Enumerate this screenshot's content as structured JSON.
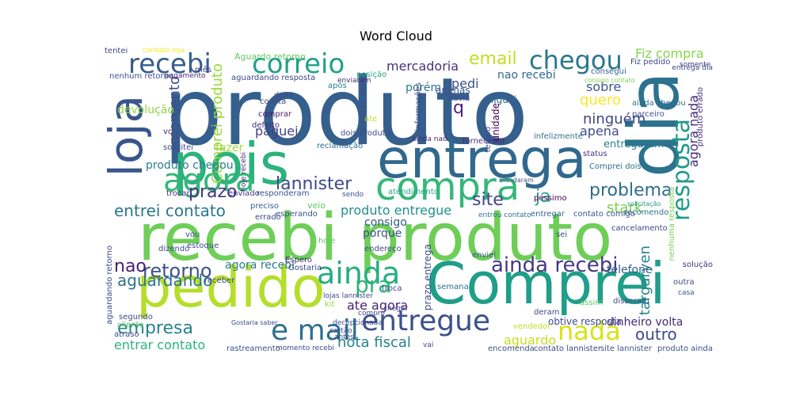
{
  "chart_data": {
    "type": "word_cloud",
    "title": "Word Cloud",
    "words": [
      {
        "text": "produto",
        "color": "#355f8d"
      },
      {
        "text": "recebi produto",
        "color": "#6ece58"
      },
      {
        "text": "pois",
        "color": "#2db27d"
      },
      {
        "text": "entrega",
        "color": "#31688e"
      },
      {
        "text": "dia",
        "color": "#2c728e"
      },
      {
        "text": "Comprei",
        "color": "#1f9e89"
      },
      {
        "text": "pedido",
        "color": "#b5de2b"
      },
      {
        "text": "loja",
        "color": "#39568c"
      },
      {
        "text": "compra",
        "color": "#35b779"
      },
      {
        "text": "correio",
        "color": "#1fa188"
      },
      {
        "text": "recebi",
        "color": "#365c8d"
      },
      {
        "text": "chegou",
        "color": "#2a788e"
      },
      {
        "text": "agora",
        "color": "#35b779"
      },
      {
        "text": "ainda",
        "color": "#27ad81"
      },
      {
        "text": "e mail",
        "color": "#2d708e"
      },
      {
        "text": "entregue",
        "color": "#3b528b"
      },
      {
        "text": "nada",
        "color": "#d8e219"
      },
      {
        "text": "ainda recebi",
        "color": "#443983"
      },
      {
        "text": "resposta",
        "color": "#1f9a8a"
      },
      {
        "text": "lannister",
        "color": "#3e4989"
      },
      {
        "text": "problema",
        "color": "#2e6d8e"
      },
      {
        "text": "site",
        "color": "#3f4788"
      },
      {
        "text": "prazo",
        "color": "#463480"
      },
      {
        "text": "entrei contato",
        "color": "#2a768e"
      },
      {
        "text": "ja",
        "color": "#20a386"
      },
      {
        "text": "email",
        "color": "#c2df23"
      },
      {
        "text": "retorno",
        "color": "#3b528b"
      },
      {
        "text": "nao",
        "color": "#482173"
      },
      {
        "text": "pra",
        "color": "#31b57b"
      },
      {
        "text": "aguardando",
        "color": "#2c738e"
      },
      {
        "text": "empresa",
        "color": "#25848e"
      },
      {
        "text": "entrar contato",
        "color": "#2db27d"
      },
      {
        "text": "mercadoria",
        "color": "#46337e"
      },
      {
        "text": "Fiz compra",
        "color": "#86d549"
      },
      {
        "text": "nao recebi",
        "color": "#30698e"
      },
      {
        "text": "quero",
        "color": "#fde725"
      },
      {
        "text": "ninguém",
        "color": "#414487"
      },
      {
        "text": "sobre",
        "color": "#38598c"
      },
      {
        "text": "apena",
        "color": "#3d4d8a"
      },
      {
        "text": "entregaram",
        "color": "#287c8e"
      },
      {
        "text": "momento",
        "color": "#3d4e8a"
      },
      {
        "text": "Comprei produto",
        "color": "#9bd93c"
      },
      {
        "text": "paguei",
        "color": "#433e85"
      },
      {
        "text": "produto chegou",
        "color": "#277f8e"
      },
      {
        "text": "produto entregue",
        "color": "#21918c"
      },
      {
        "text": "porque",
        "color": "#3a548c"
      },
      {
        "text": "consigo",
        "color": "#375a8c"
      },
      {
        "text": "agora recebi",
        "color": "#287d8e"
      },
      {
        "text": "ate agora",
        "color": "#482475"
      },
      {
        "text": "nota fiscal",
        "color": "#25838e"
      },
      {
        "text": "aguardo",
        "color": "#c8e020"
      },
      {
        "text": "outro",
        "color": "#3e4a89"
      },
      {
        "text": "targaryen",
        "color": "#26828e"
      },
      {
        "text": "stark",
        "color": "#7ad151"
      },
      {
        "text": "agora nada",
        "color": "#472f7d"
      },
      {
        "text": "dinheiro volta",
        "color": "#482878"
      },
      {
        "text": "telefone",
        "color": "#34618d"
      },
      {
        "text": "devolução",
        "color": "#90d743"
      },
      {
        "text": "fazer",
        "color": "#a2da37"
      },
      {
        "text": "q",
        "color": "#482475"
      },
      {
        "text": "porém",
        "color": "#2a788e"
      },
      {
        "text": "pedi",
        "color": "#3b528b"
      },
      {
        "text": "Aguardo retorno",
        "color": "#5ec962"
      },
      {
        "text": "contato loja",
        "color": "#fde725"
      },
      {
        "text": "tentei",
        "color": "#414487"
      },
      {
        "text": "nenhum retorno",
        "color": "#3b528b"
      },
      {
        "text": "pagamento",
        "color": "#482878"
      },
      {
        "text": "aguardando resposta",
        "color": "#3e4a89"
      },
      {
        "text": "posição",
        "color": "#22a884"
      },
      {
        "text": "enviaram",
        "color": "#472c7a"
      },
      {
        "text": "após",
        "color": "#25848e"
      },
      {
        "text": "apenas",
        "color": "#3b528b"
      },
      {
        "text": "consegui",
        "color": "#355f8d"
      },
      {
        "text": "consigo contato",
        "color": "#7ad151"
      },
      {
        "text": "Fiz pedido",
        "color": "#3e4a89"
      },
      {
        "text": "somente",
        "color": "#463480"
      },
      {
        "text": "entrega dia",
        "color": "#3e4989"
      },
      {
        "text": "ainda chegou",
        "color": "#2c728e"
      },
      {
        "text": "parceiro",
        "color": "#3b528b"
      },
      {
        "text": "produto errado",
        "color": "#46327e"
      },
      {
        "text": "liguei",
        "color": "#31688e"
      },
      {
        "text": "havia",
        "color": "#3e4a89"
      },
      {
        "text": "unidade",
        "color": "#440154"
      },
      {
        "text": "informações",
        "color": "#3f4788"
      },
      {
        "text": "produto veio",
        "color": "#3e4a89"
      },
      {
        "text": "consta",
        "color": "#3e4a89"
      },
      {
        "text": "comprar",
        "color": "#481a6c"
      },
      {
        "text": "defeito",
        "color": "#472d7b"
      },
      {
        "text": "reclamação",
        "color": "#2e6d8e"
      },
      {
        "text": "dois produto",
        "color": "#3e4a89"
      },
      {
        "text": "ainda nao",
        "color": "#482878"
      },
      {
        "text": "fornecedor",
        "color": "#482878"
      },
      {
        "text": "infelizmente",
        "color": "#2c738e"
      },
      {
        "text": "status",
        "color": "#46337e"
      },
      {
        "text": "Comprei dois",
        "color": "#2e6e8e"
      },
      {
        "text": "mandaram",
        "color": "#3b528b"
      },
      {
        "text": "vc",
        "color": "#482878"
      },
      {
        "text": "solicitei",
        "color": "#3f4788"
      },
      {
        "text": "hoje recebi",
        "color": "#472c7a"
      },
      {
        "text": "trocar",
        "color": "#472f7d"
      },
      {
        "text": "enviado",
        "color": "#433e85"
      },
      {
        "text": "responderam",
        "color": "#3b528b"
      },
      {
        "text": "sendo",
        "color": "#3b528b"
      },
      {
        "text": "atendimento",
        "color": "#22a884"
      },
      {
        "text": "tempo",
        "color": "#3e4a89"
      },
      {
        "text": "péssimo",
        "color": "#440154"
      },
      {
        "text": "recomendo",
        "color": "#2c728e"
      },
      {
        "text": "solicitação",
        "color": "#1f9a8a"
      },
      {
        "text": "preciso",
        "color": "#355f8d"
      },
      {
        "text": "errado",
        "color": "#3e4a89"
      },
      {
        "text": "esperando",
        "color": "#3b528b"
      },
      {
        "text": "veio",
        "color": "#5ec962"
      },
      {
        "text": "entrou contato",
        "color": "#2c728e"
      },
      {
        "text": "entregar",
        "color": "#31688e"
      },
      {
        "text": "contato comigo",
        "color": "#3b528b"
      },
      {
        "text": "cancelamento",
        "color": "#3e4a89"
      },
      {
        "text": "nenhuma resposta",
        "color": "#7ad151"
      },
      {
        "text": "vou",
        "color": "#3b528b"
      },
      {
        "text": "estoque",
        "color": "#3e4a89"
      },
      {
        "text": "dizendo",
        "color": "#3e4a89"
      },
      {
        "text": "hoje",
        "color": "#5ec962"
      },
      {
        "text": "endereço",
        "color": "#3e4a89"
      },
      {
        "text": "enviei",
        "color": "#3b528b"
      },
      {
        "text": "prazo entrega",
        "color": "#3e4a89"
      },
      {
        "text": "sei",
        "color": "#3e4a89"
      },
      {
        "text": "solução",
        "color": "#46327e"
      },
      {
        "text": "receber",
        "color": "#3e4a89"
      },
      {
        "text": "Espero",
        "color": "#472d7b"
      },
      {
        "text": "Gostaria",
        "color": "#3e4a89"
      },
      {
        "text": "troca",
        "color": "#3e4a89"
      },
      {
        "text": "lojas lannister",
        "color": "#3e4a89"
      },
      {
        "text": "semana",
        "color": "#2c728e"
      },
      {
        "text": "outra",
        "color": "#3e4a89"
      },
      {
        "text": "casa",
        "color": "#3b528b"
      },
      {
        "text": "segundo",
        "color": "#3e4a89"
      },
      {
        "text": "kit",
        "color": "#90d743"
      },
      {
        "text": "assim",
        "color": "#5ec962"
      },
      {
        "text": "disseram",
        "color": "#3e4a89"
      },
      {
        "text": "atraso",
        "color": "#3e4a89"
      },
      {
        "text": "cliente",
        "color": "#5ec962"
      },
      {
        "text": "Gostaria saber",
        "color": "#3e4a89"
      },
      {
        "text": "obtive resposta",
        "color": "#3e4a89"
      },
      {
        "text": "deram",
        "color": "#3e4a89"
      },
      {
        "text": "vendedor",
        "color": "#c2df23"
      },
      {
        "text": "rastreamento",
        "color": "#3b528b"
      },
      {
        "text": "momento recebi",
        "color": "#3e4a89"
      },
      {
        "text": "vai",
        "color": "#3e4a89"
      },
      {
        "text": "encomenda",
        "color": "#3b528b"
      },
      {
        "text": "contato lannister",
        "color": "#3e4a89"
      },
      {
        "text": "site lannister",
        "color": "#3b528b"
      },
      {
        "text": "produto ainda",
        "color": "#3b528b"
      },
      {
        "text": "duas",
        "color": "#3e4a89"
      },
      {
        "text": "mês",
        "color": "#3e4a89"
      },
      {
        "text": "ate",
        "color": "#c2df23"
      },
      {
        "text": "aguardando retorno",
        "color": "#3e4a89"
      },
      {
        "text": "chegar",
        "color": "#3e4a89"
      },
      {
        "text": "decepcionada",
        "color": "#3e4a89"
      },
      {
        "text": "cartão",
        "color": "#3e4a89"
      },
      {
        "text": "antes",
        "color": "#3e4a89"
      },
      {
        "text": "compro",
        "color": "#3e4a89"
      }
    ]
  }
}
